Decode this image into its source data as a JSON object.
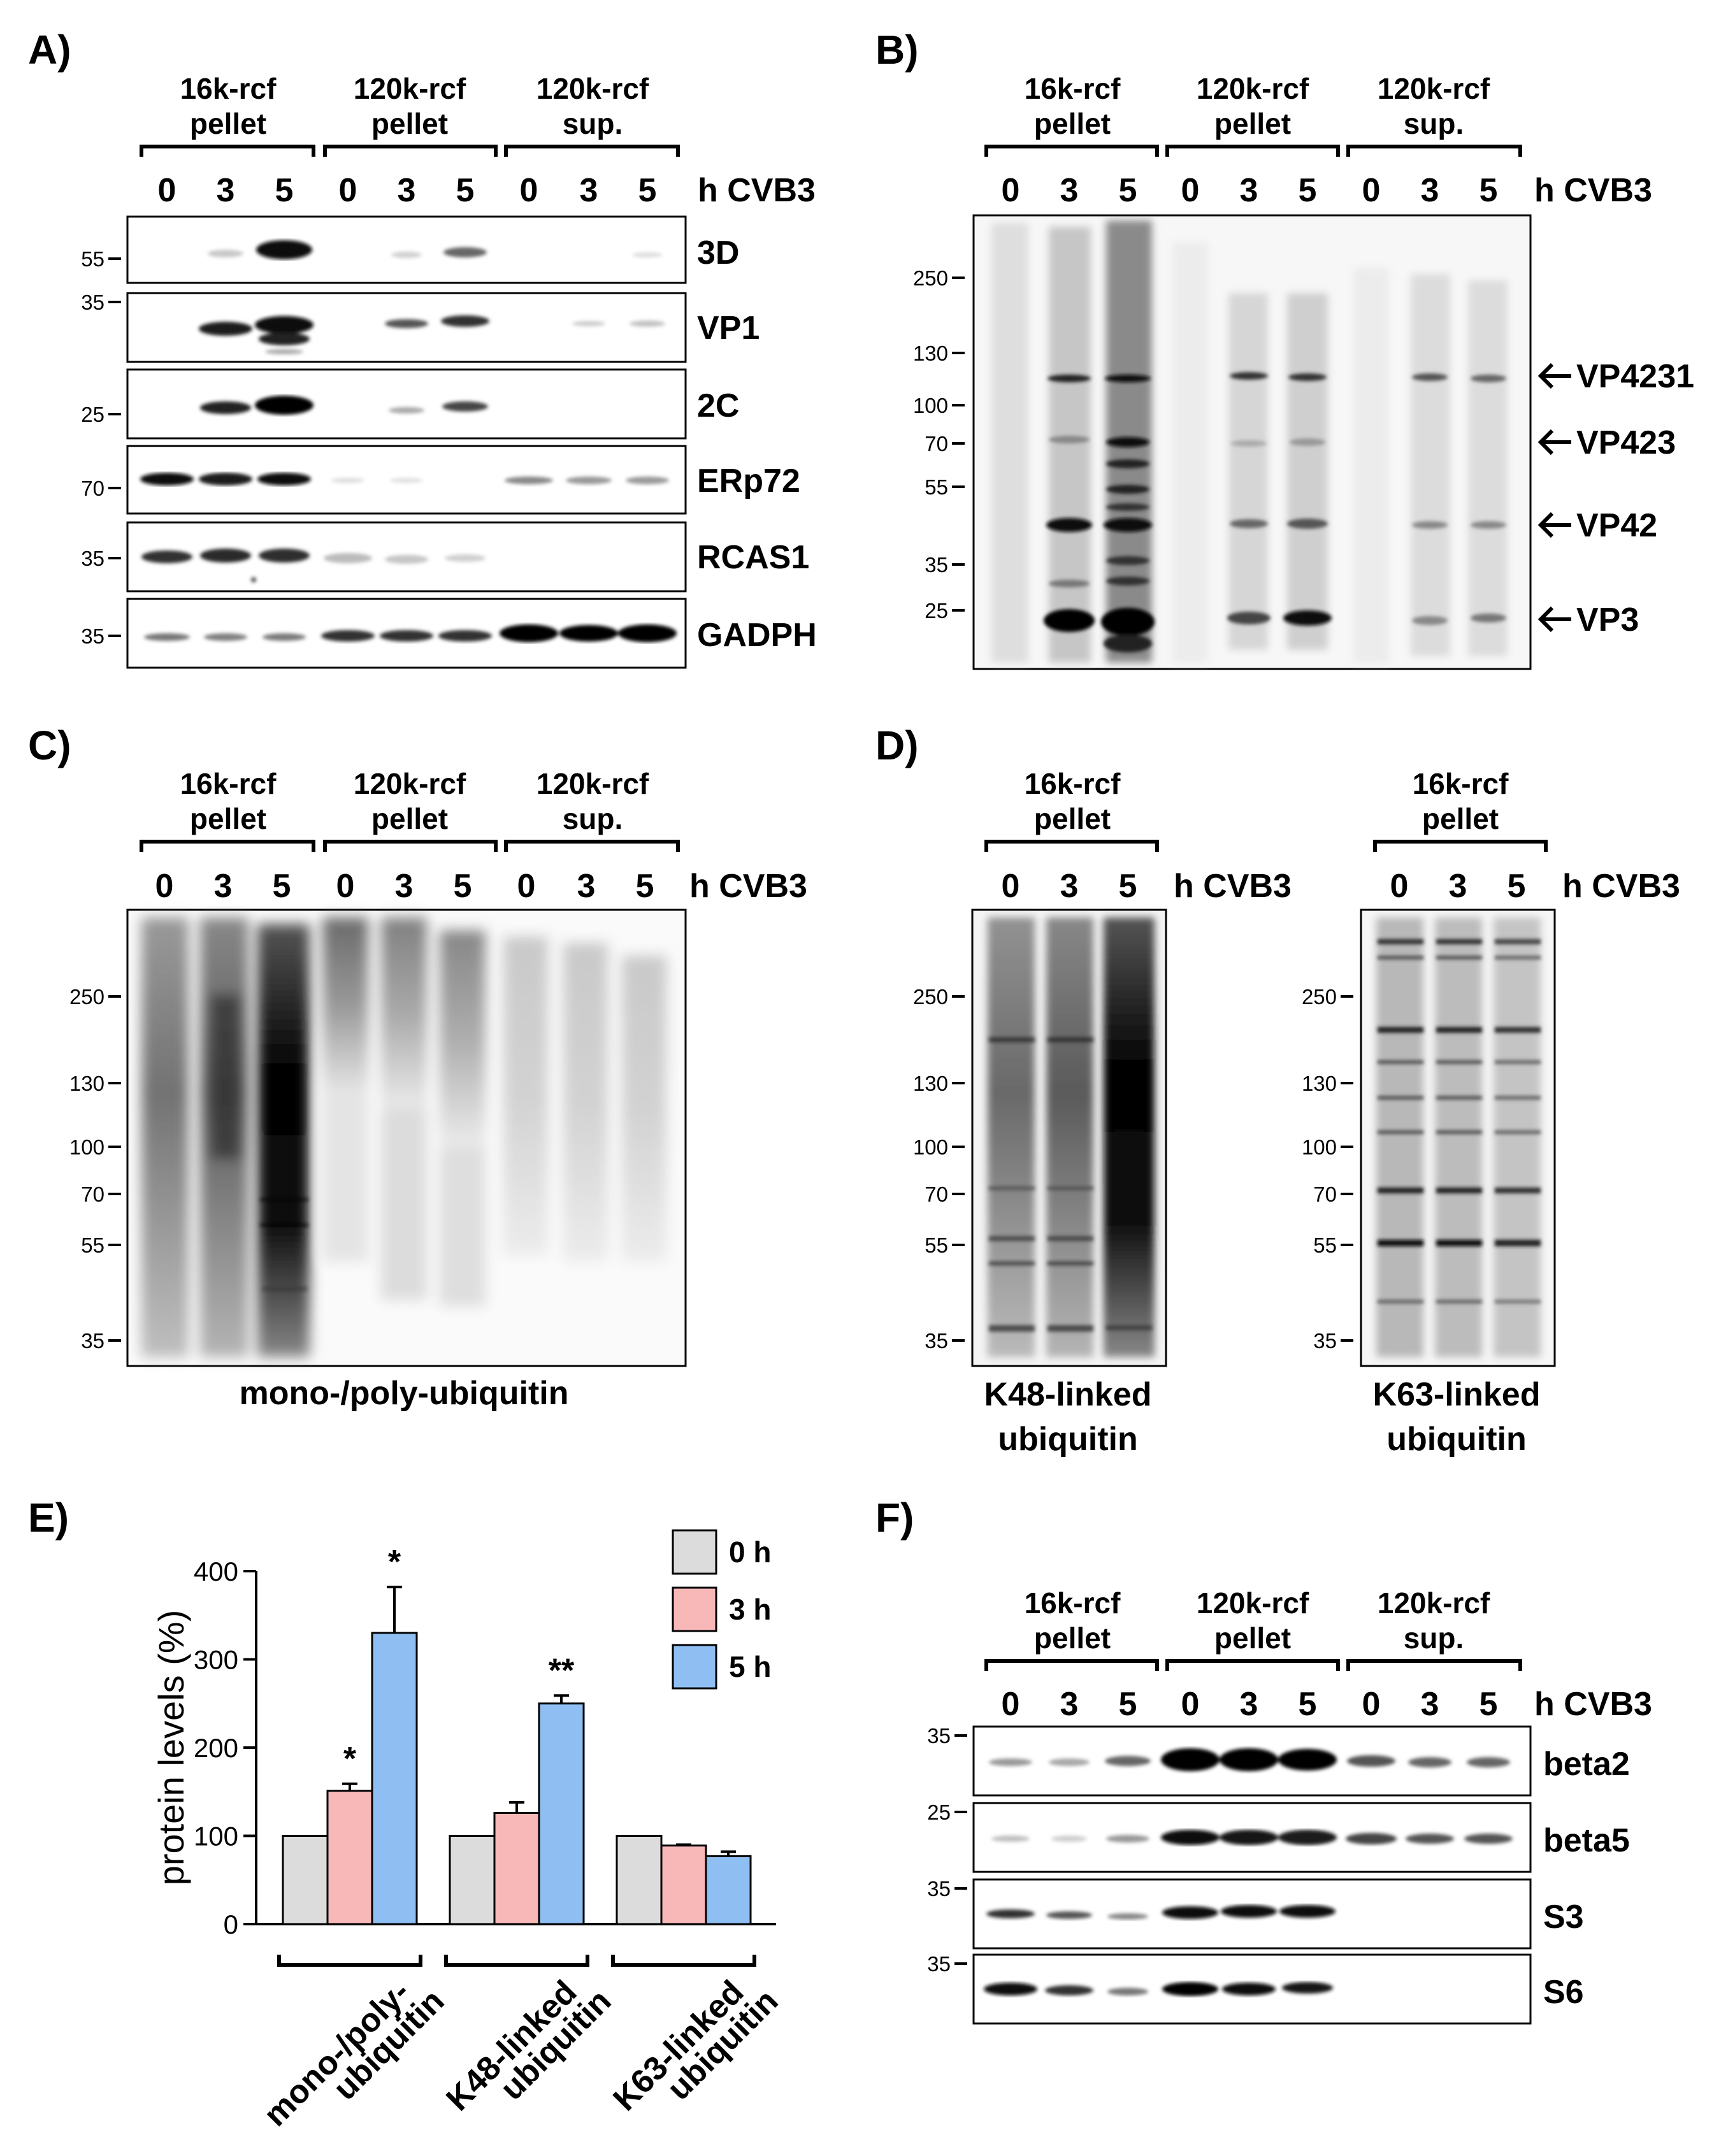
{
  "panels": {
    "A": {
      "label": "A)",
      "groups": [
        "16k-rcf",
        "pellet",
        "120k-rcf",
        "pellet",
        "120k-rcf",
        "sup."
      ],
      "lanes": [
        "0",
        "3",
        "5",
        "0",
        "3",
        "5",
        "0",
        "3",
        "5"
      ],
      "time_label": "h CVB3",
      "blots": [
        {
          "name": "3D",
          "marker": "55"
        },
        {
          "name": "VP1",
          "marker": "35"
        },
        {
          "name": "2C",
          "marker": "25"
        },
        {
          "name": "ERp72",
          "marker": "70"
        },
        {
          "name": "RCAS1",
          "marker": "35"
        },
        {
          "name": "GADPH",
          "marker": "35"
        }
      ]
    },
    "B": {
      "label": "B)",
      "groups": [
        "16k-rcf",
        "pellet",
        "120k-rcf",
        "pellet",
        "120k-rcf",
        "sup."
      ],
      "lanes": [
        "0",
        "3",
        "5",
        "0",
        "3",
        "5",
        "0",
        "3",
        "5"
      ],
      "time_label": "h CVB3",
      "markers": [
        "250",
        "130",
        "100",
        "70",
        "55",
        "35",
        "25"
      ],
      "bands": [
        "VP4231",
        "VP423",
        "VP42",
        "VP3"
      ]
    },
    "C": {
      "label": "C)",
      "groups": [
        "16k-rcf",
        "pellet",
        "120k-rcf",
        "pellet",
        "120k-rcf",
        "sup."
      ],
      "lanes": [
        "0",
        "3",
        "5",
        "0",
        "3",
        "5",
        "0",
        "3",
        "5"
      ],
      "time_label": "h CVB3",
      "markers": [
        "250",
        "130",
        "100",
        "70",
        "55",
        "35"
      ],
      "caption": "mono-/poly-ubiquitin"
    },
    "D": {
      "label": "D)",
      "left": {
        "group": [
          "16k-rcf",
          "pellet"
        ],
        "lanes": [
          "0",
          "3",
          "5"
        ],
        "time_label": "h CVB3",
        "markers": [
          "250",
          "130",
          "100",
          "70",
          "55",
          "35"
        ],
        "caption": [
          "K48-linked",
          "ubiquitin"
        ]
      },
      "right": {
        "group": [
          "16k-rcf",
          "pellet"
        ],
        "lanes": [
          "0",
          "3",
          "5"
        ],
        "time_label": "h CVB3",
        "markers": [
          "250",
          "130",
          "100",
          "70",
          "55",
          "35"
        ],
        "caption": [
          "K63-linked",
          "ubiquitin"
        ]
      }
    },
    "E": {
      "label": "E)",
      "legend": [
        {
          "label": "0 h",
          "color": "#dcdcdc"
        },
        {
          "label": "3 h",
          "color": "#f9b8b8"
        },
        {
          "label": "5 h",
          "color": "#8fbff2"
        }
      ]
    },
    "F": {
      "label": "F)",
      "groups": [
        "16k-rcf",
        "pellet",
        "120k-rcf",
        "pellet",
        "120k-rcf",
        "sup."
      ],
      "lanes": [
        "0",
        "3",
        "5",
        "0",
        "3",
        "5",
        "0",
        "3",
        "5"
      ],
      "time_label": "h CVB3",
      "blots": [
        {
          "name": "beta2",
          "marker": "35"
        },
        {
          "name": "beta5",
          "marker": "25"
        },
        {
          "name": "S3",
          "marker": "35"
        },
        {
          "name": "S6",
          "marker": "35"
        }
      ]
    }
  },
  "chart_data": {
    "type": "bar",
    "ylabel": "protein levels (%)",
    "ylim": [
      0,
      400
    ],
    "yticks": [
      "0",
      "100",
      "200",
      "300",
      "400"
    ],
    "categories": [
      "mono-/poly-\nubiquitin",
      "K48-linked\nubiquitin",
      "K63-linked\nubiquitin"
    ],
    "category_lines": [
      [
        "mono-/poly-",
        "ubiquitin"
      ],
      [
        "K48-linked",
        "ubiquitin"
      ],
      [
        "K63-linked",
        "ubiquitin"
      ]
    ],
    "series": [
      {
        "name": "0 h",
        "values": [
          100,
          100,
          100
        ],
        "errors": [
          0,
          0,
          0
        ]
      },
      {
        "name": "3 h",
        "values": [
          151,
          126,
          89
        ],
        "errors": [
          8,
          12,
          1
        ]
      },
      {
        "name": "5 h",
        "values": [
          330,
          250,
          77
        ],
        "errors": [
          52,
          9,
          5
        ]
      }
    ],
    "annotations": [
      {
        "category": 0,
        "series": 1,
        "text": "*"
      },
      {
        "category": 0,
        "series": 2,
        "text": "*"
      },
      {
        "category": 1,
        "series": 2,
        "text": "**"
      }
    ],
    "legend_position": "top-right",
    "grid": false
  }
}
